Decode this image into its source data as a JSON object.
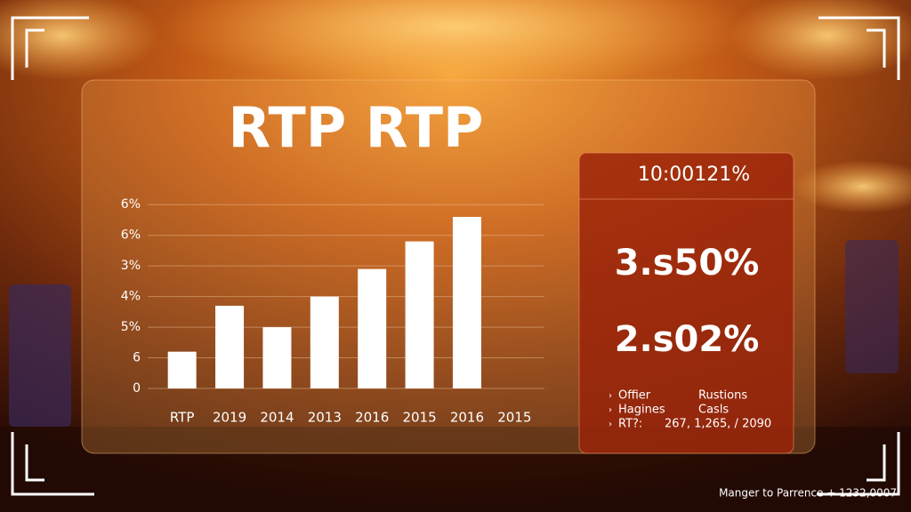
{
  "chart_data": {
    "type": "bar",
    "title": "RTP RTP",
    "categories": [
      "RTP",
      "2019",
      "2014",
      "2013",
      "2016",
      "2015",
      "2016",
      "2015"
    ],
    "values": [
      1.2,
      2.7,
      2.0,
      3.0,
      3.9,
      4.8,
      5.6,
      null
    ],
    "color": "#ffffff",
    "ylim": [
      0,
      6.5
    ],
    "yticks": [
      0,
      {
        "value": 1,
        "label": "6"
      },
      {
        "value": 2,
        "label": "5%"
      },
      {
        "value": 3,
        "label": "4%"
      },
      {
        "value": 4,
        "label": "3%"
      },
      {
        "value": 5,
        "label": "6%"
      },
      {
        "value": 6,
        "label": "6%"
      }
    ],
    "grid": true
  },
  "stats": {
    "header": "10:00121%",
    "primary": "3.s50%",
    "secondary": "2.s02%",
    "list": [
      [
        "Offier",
        "Rustions"
      ],
      [
        "Hagines",
        "Casls"
      ],
      [
        "RT?:",
        "267, 1,265, / 2090"
      ]
    ]
  },
  "footer": "Manger to Parrence + 1232,0007"
}
